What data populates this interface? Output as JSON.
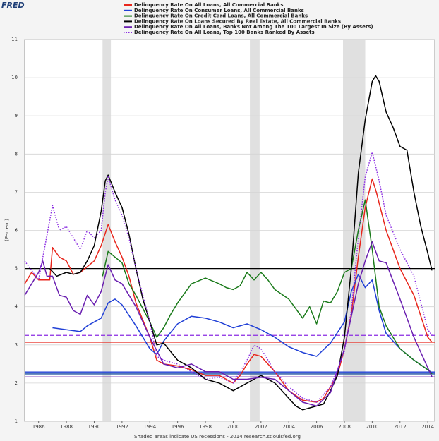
{
  "logo": "FRED",
  "chart_data": {
    "type": "line",
    "y_label": "(Percent)",
    "footer": "Shaded areas indicate US recessions - 2014 research.stlouisfed.org",
    "xlim": [
      1985,
      2014.5
    ],
    "ylim": [
      1,
      11
    ],
    "xticks": [
      1986,
      1988,
      1990,
      1992,
      1994,
      1996,
      1998,
      2000,
      2002,
      2004,
      2006,
      2008,
      2010,
      2012,
      2014
    ],
    "yticks": [
      1,
      2,
      3,
      4,
      5,
      6,
      7,
      8,
      9,
      10,
      11
    ],
    "grid": true,
    "recessions": [
      [
        1990.6,
        1991.2
      ],
      [
        2001.2,
        2001.9
      ],
      [
        2007.9,
        2009.5
      ]
    ],
    "recession_color": "#e0e0e0",
    "series": [
      {
        "name": "Delinquency Rate On All Loans, All Commercial Banks",
        "color": "#e8261c",
        "dash": "solid",
        "x": [
          1985,
          1985.5,
          1986,
          1986.8,
          1987,
          1987.5,
          1988,
          1988.5,
          1989,
          1990,
          1990.5,
          1991,
          1991.5,
          1992,
          1992.5,
          1993,
          1994,
          1994.5,
          1995,
          1996,
          1997,
          1998,
          1999,
          2000,
          2000.5,
          2001,
          2001.5,
          2002,
          2002.5,
          2003,
          2004,
          2005,
          2006,
          2006.5,
          2007,
          2007.5,
          2008,
          2008.5,
          2009,
          2009.5,
          2010,
          2010.3,
          2011,
          2012,
          2013,
          2014,
          2014.3
        ],
        "values": [
          4.6,
          4.9,
          4.7,
          4.7,
          5.55,
          5.3,
          5.2,
          4.85,
          4.9,
          5.2,
          5.6,
          6.15,
          5.7,
          5.3,
          4.8,
          4.1,
          3.2,
          2.6,
          2.5,
          2.45,
          2.35,
          2.2,
          2.2,
          2.0,
          2.2,
          2.5,
          2.75,
          2.7,
          2.5,
          2.3,
          1.8,
          1.55,
          1.5,
          1.6,
          1.9,
          2.2,
          2.9,
          3.8,
          5.3,
          6.6,
          7.35,
          7.0,
          6.0,
          5.0,
          4.3,
          3.2,
          3.07
        ]
      },
      {
        "name": "Delinquency Rate On Consumer Loans, All Commercial Banks",
        "color": "#1f3fd6",
        "dash": "solid",
        "x": [
          1987,
          1988,
          1989,
          1989.5,
          1990,
          1990.5,
          1991,
          1991.5,
          1992,
          1993,
          1994,
          1994.5,
          1995,
          1996,
          1997,
          1998,
          1999,
          2000,
          2001,
          2002,
          2003,
          2004,
          2005,
          2006,
          2007,
          2008,
          2008.5,
          2009,
          2009.5,
          2010,
          2010.5,
          2011,
          2012,
          2013,
          2014,
          2014.3
        ],
        "values": [
          3.45,
          3.4,
          3.35,
          3.5,
          3.6,
          3.7,
          4.1,
          4.2,
          4.05,
          3.5,
          2.9,
          2.75,
          3.1,
          3.55,
          3.75,
          3.7,
          3.6,
          3.45,
          3.55,
          3.4,
          3.2,
          2.95,
          2.8,
          2.7,
          3.05,
          3.6,
          4.4,
          4.85,
          4.5,
          4.7,
          3.9,
          3.3,
          2.9,
          2.6,
          2.35,
          2.27
        ]
      },
      {
        "name": "Delinquency Rate On Credit Card Loans, All Commercial Banks",
        "color": "#1a7a1a",
        "dash": "solid",
        "x": [
          1990.6,
          1991,
          1991.5,
          1992,
          1992.5,
          1993,
          1994,
          1994.5,
          1995,
          1995.5,
          1996,
          1997,
          1998,
          1999,
          1999.5,
          2000,
          2000.5,
          2001,
          2001.5,
          2002,
          2002.5,
          2003,
          2004,
          2005,
          2005.5,
          2006,
          2006.5,
          2007,
          2007.5,
          2008,
          2008.5,
          2009,
          2009.5,
          2010,
          2010.5,
          2011,
          2012,
          2013,
          2014,
          2014.3
        ],
        "values": [
          4.8,
          5.45,
          5.3,
          5.15,
          4.6,
          4.3,
          3.6,
          3.2,
          3.45,
          3.8,
          4.1,
          4.6,
          4.75,
          4.6,
          4.5,
          4.45,
          4.55,
          4.9,
          4.7,
          4.9,
          4.7,
          4.45,
          4.2,
          3.7,
          4.0,
          3.55,
          4.15,
          4.1,
          4.4,
          4.9,
          5.0,
          6.0,
          6.8,
          5.5,
          4.0,
          3.5,
          2.9,
          2.6,
          2.35,
          2.24
        ]
      },
      {
        "name": "Delinquency Rate On Loans Secured By Real Estate, All Commercial Banks",
        "color": "#000000",
        "dash": "solid",
        "x": [
          1986.8,
          1987.3,
          1988,
          1988.5,
          1989,
          1989.5,
          1990,
          1990.5,
          1990.8,
          1991,
          1991.5,
          1992,
          1992.5,
          1993,
          1993.5,
          1994,
          1994.5,
          1995,
          1996,
          1997,
          1998,
          1999,
          2000,
          2001,
          2002,
          2003,
          2004,
          2004.5,
          2005,
          2006,
          2006.5,
          2007,
          2007.5,
          2008,
          2008.5,
          2009,
          2009.5,
          2010,
          2010.25,
          2010.5,
          2011,
          2011.5,
          2012,
          2012.5,
          2013,
          2013.5,
          2014,
          2014.3
        ],
        "values": [
          5.0,
          4.8,
          4.9,
          4.85,
          4.9,
          5.2,
          5.6,
          6.5,
          7.3,
          7.45,
          7.0,
          6.6,
          5.9,
          5.0,
          4.2,
          3.6,
          3.0,
          3.05,
          2.6,
          2.4,
          2.1,
          2.0,
          1.8,
          2.0,
          2.2,
          2.0,
          1.6,
          1.4,
          1.3,
          1.4,
          1.45,
          1.8,
          2.2,
          3.2,
          5.0,
          7.5,
          8.9,
          9.9,
          10.05,
          9.9,
          9.1,
          8.7,
          8.2,
          8.1,
          7.0,
          6.1,
          5.4,
          4.95
        ]
      },
      {
        "name": "Delinquency Rate On All Loans, Banks Not Among The 100 Largest In Size (By Assets)",
        "color": "#6a1fb0",
        "dash": "solid",
        "x": [
          1985,
          1985.5,
          1986,
          1986.3,
          1986.6,
          1987,
          1987.5,
          1988,
          1988.5,
          1989,
          1989.5,
          1990,
          1990.5,
          1991,
          1991.5,
          1992,
          1993,
          1994,
          1995,
          1996,
          1997,
          1998,
          1999,
          2000,
          2001,
          2002,
          2003,
          2004,
          2005,
          2006,
          2007,
          2008,
          2009,
          2009.5,
          2010,
          2010.5,
          2011,
          2012,
          2013,
          2014,
          2014.3
        ],
        "values": [
          4.3,
          4.6,
          4.9,
          5.2,
          4.8,
          4.8,
          4.3,
          4.25,
          3.9,
          3.8,
          4.3,
          4.05,
          4.4,
          5.1,
          4.7,
          4.6,
          4.0,
          3.2,
          2.5,
          2.4,
          2.5,
          2.3,
          2.3,
          2.1,
          2.1,
          2.15,
          2.1,
          1.8,
          1.5,
          1.4,
          1.75,
          2.9,
          4.6,
          5.2,
          5.7,
          5.2,
          5.15,
          4.2,
          3.2,
          2.4,
          2.16
        ]
      },
      {
        "name": "Delinquency Rate On All Loans, Top 100 Banks Ranked By Assets",
        "color": "#8a2be2",
        "dash": "dotted",
        "x": [
          1985,
          1986,
          1987,
          1987.5,
          1988,
          1988.5,
          1989,
          1989.5,
          1990,
          1990.5,
          1990.8,
          1991,
          1991.5,
          1992,
          1992.5,
          1993,
          1993.5,
          1994,
          1994.5,
          1995,
          1996,
          1997,
          1998,
          1999,
          2000,
          2001,
          2001.5,
          2002,
          2002.5,
          2003,
          2004,
          2005,
          2006,
          2007,
          2008,
          2008.5,
          2009,
          2009.5,
          2010,
          2010.5,
          2011,
          2012,
          2013,
          2014,
          2014.3
        ],
        "values": [
          5.2,
          4.7,
          6.65,
          6.0,
          6.1,
          5.8,
          5.5,
          6.0,
          5.8,
          6.0,
          7.0,
          7.4,
          6.8,
          6.4,
          5.8,
          5.0,
          4.3,
          3.6,
          2.7,
          2.6,
          2.5,
          2.3,
          2.1,
          2.15,
          2.0,
          2.6,
          3.0,
          2.9,
          2.6,
          2.3,
          1.9,
          1.6,
          1.5,
          1.9,
          2.8,
          3.9,
          5.8,
          7.4,
          8.05,
          7.3,
          6.4,
          5.5,
          4.8,
          3.4,
          3.25
        ]
      }
    ],
    "hlines": [
      {
        "value": 5.0,
        "color": "#000000",
        "dash": "solid"
      },
      {
        "value": 3.25,
        "color": "#8a2be2",
        "dash": "dashed"
      },
      {
        "value": 3.07,
        "color": "#e8261c",
        "dash": "solid"
      },
      {
        "value": 2.29,
        "color": "#1f3fd6",
        "dash": "solid"
      },
      {
        "value": 2.24,
        "color": "#1a4fa0",
        "dash": "solid"
      },
      {
        "value": 2.16,
        "color": "#6a1fb0",
        "dash": "solid"
      }
    ]
  }
}
